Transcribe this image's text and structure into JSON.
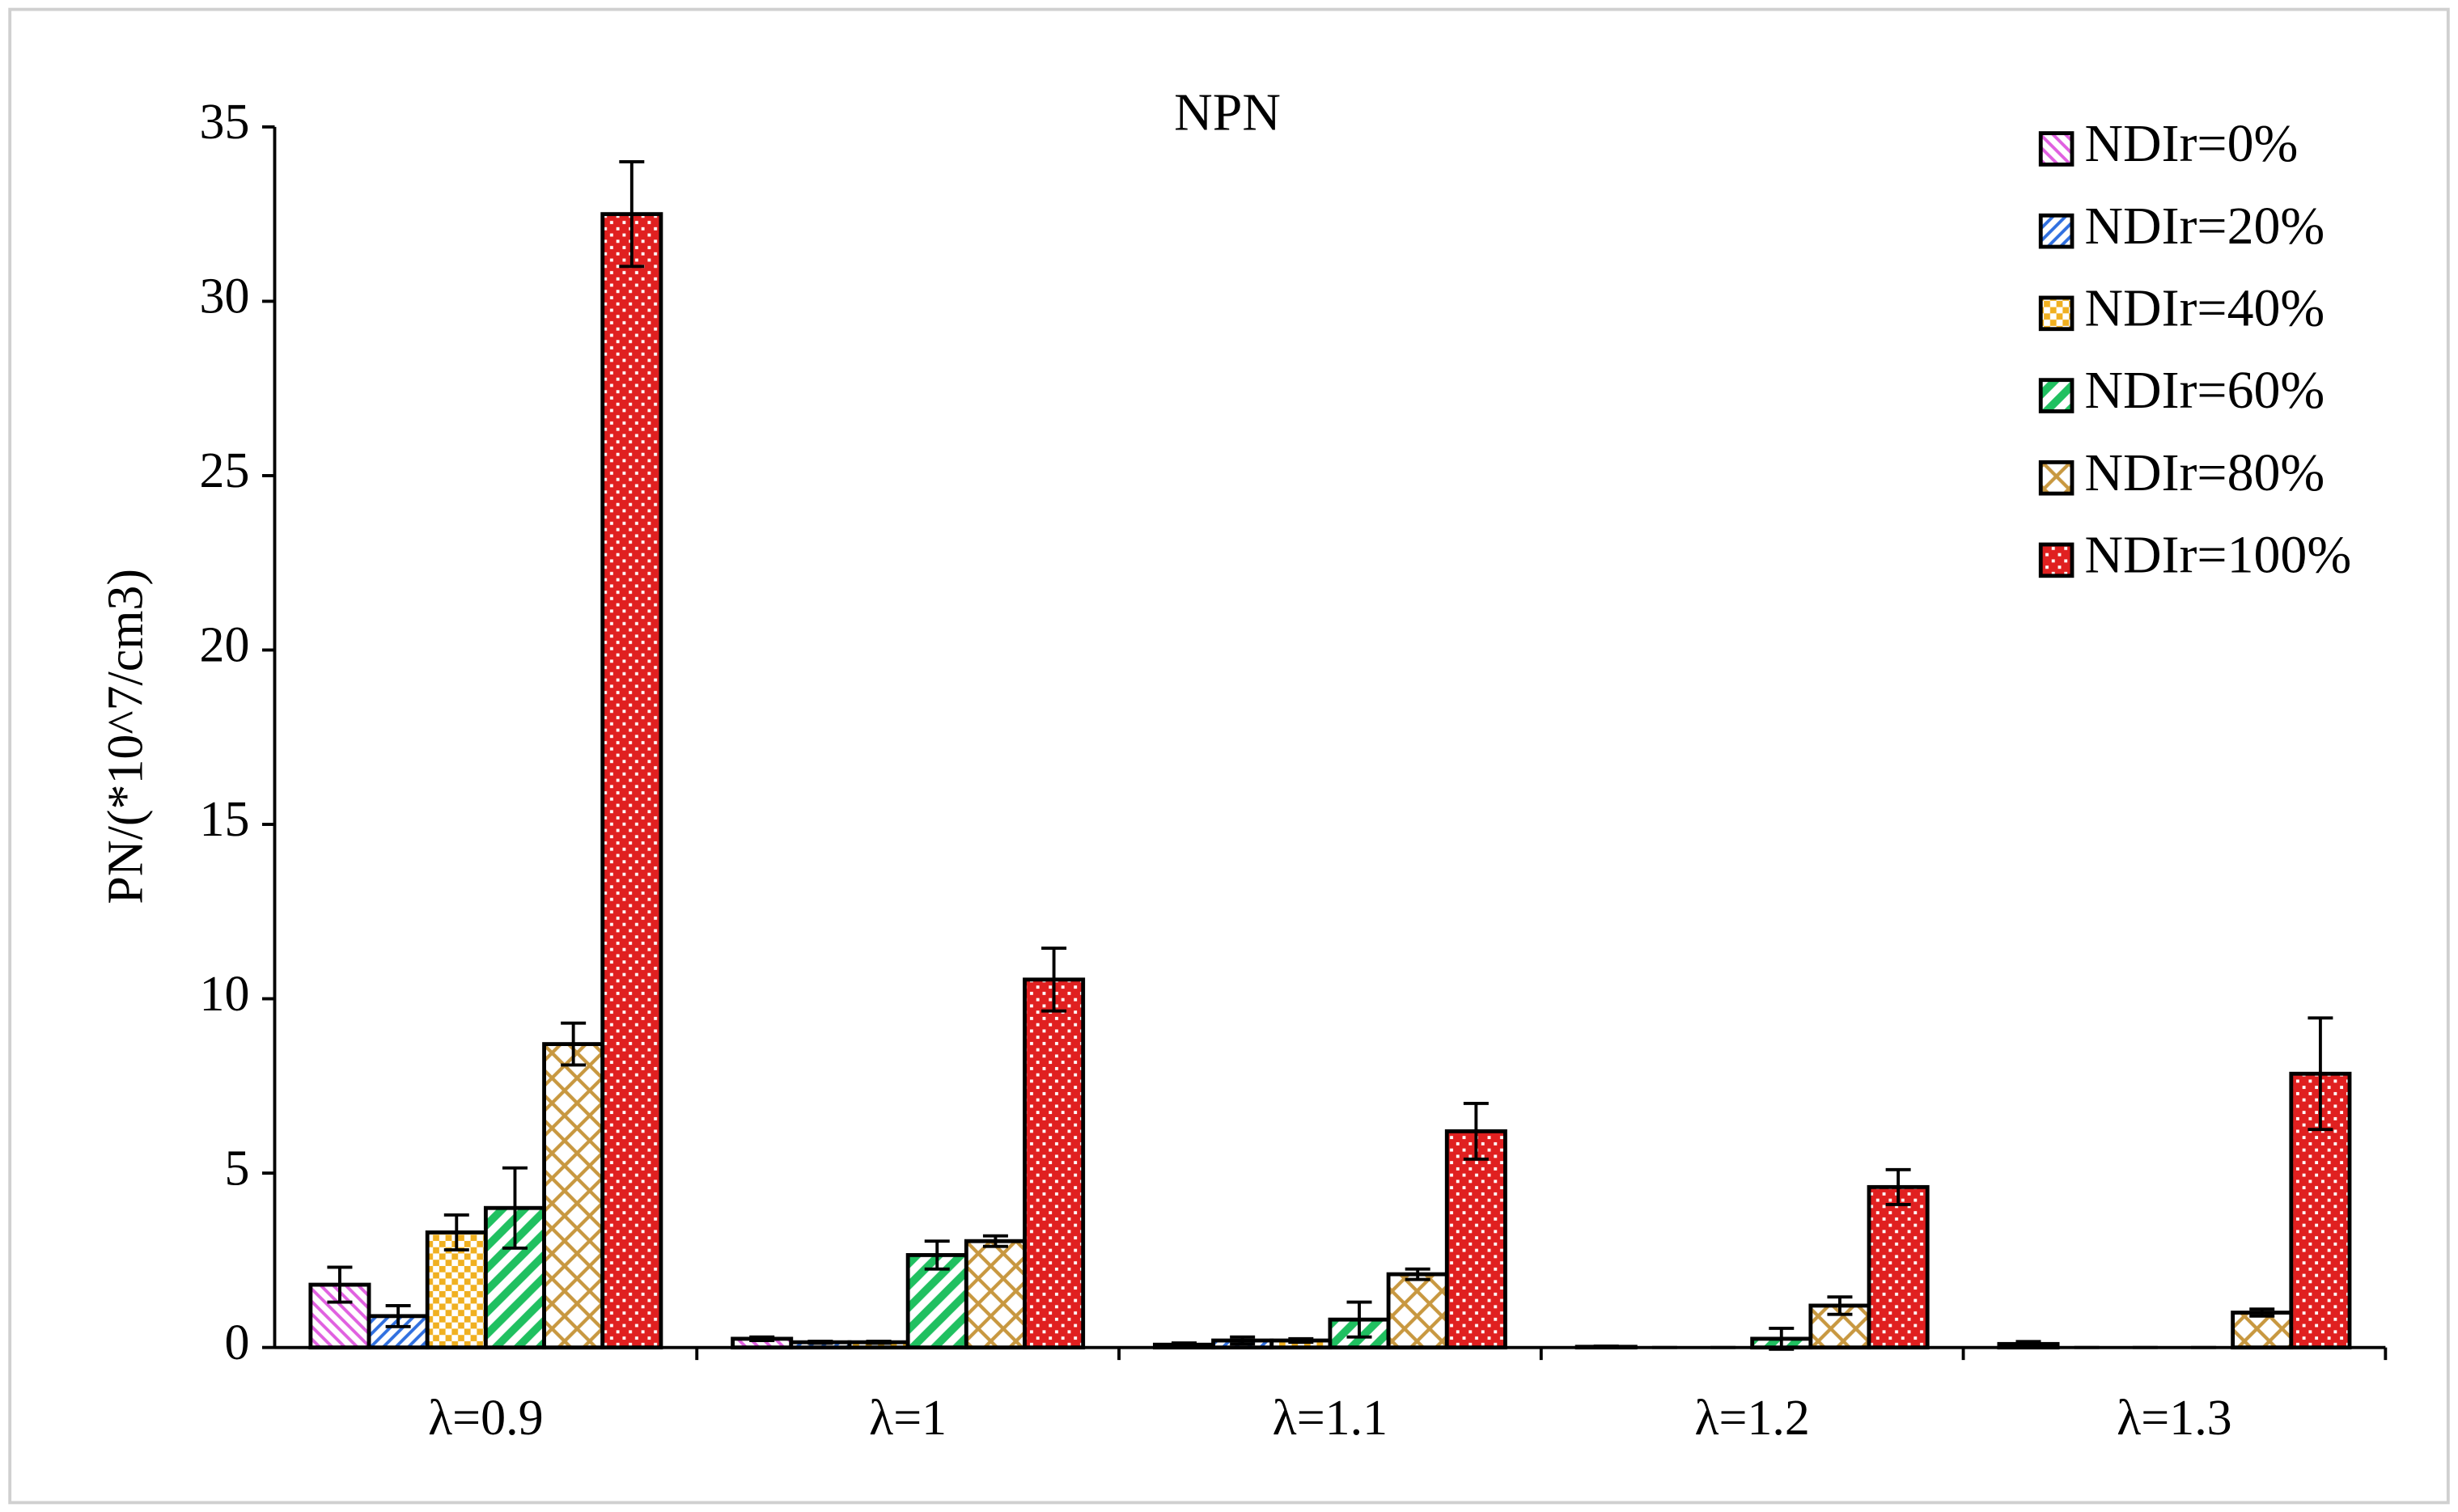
{
  "chart_data": {
    "type": "bar",
    "title": "NPN",
    "y_label": "PN/(*10^7/cm3)",
    "categories": [
      "λ=0.9",
      "λ=1",
      "λ=1.1",
      "λ=1.2",
      "λ=1.3"
    ],
    "series": [
      {
        "name": "NDIr=0%",
        "color": "#e060e0",
        "values": [
          1.8,
          0.25,
          0.08,
          0.02,
          0.1
        ],
        "errors": [
          0.5,
          0.05,
          0.05,
          0.02,
          0.07
        ]
      },
      {
        "name": "NDIr=20%",
        "color": "#3070e0",
        "values": [
          0.9,
          0.15,
          0.2,
          0,
          0
        ],
        "errors": [
          0.3,
          0.03,
          0.1,
          0,
          0
        ]
      },
      {
        "name": "NDIr=40%",
        "color": "#f0b020",
        "values": [
          3.3,
          0.15,
          0.2,
          0,
          0
        ],
        "errors": [
          0.5,
          0.03,
          0.05,
          0,
          0
        ]
      },
      {
        "name": "NDIr=60%",
        "color": "#20c060",
        "values": [
          4.0,
          2.65,
          0.8,
          0.25,
          0
        ],
        "errors": [
          1.15,
          0.4,
          0.5,
          0.3,
          0
        ]
      },
      {
        "name": "NDIr=80%",
        "color": "#c89840",
        "values": [
          8.7,
          3.05,
          2.1,
          1.2,
          1.0
        ],
        "errors": [
          0.6,
          0.15,
          0.15,
          0.25,
          0.1
        ]
      },
      {
        "name": "NDIr=100%",
        "color": "#e02020",
        "values": [
          32.5,
          10.55,
          6.2,
          4.6,
          7.85
        ],
        "errors": [
          1.5,
          0.9,
          0.8,
          0.5,
          1.6
        ]
      }
    ],
    "ylim": [
      0,
      35
    ],
    "yticks": [
      0,
      5,
      10,
      15,
      20,
      25,
      30,
      35
    ],
    "legend": "upper right"
  }
}
